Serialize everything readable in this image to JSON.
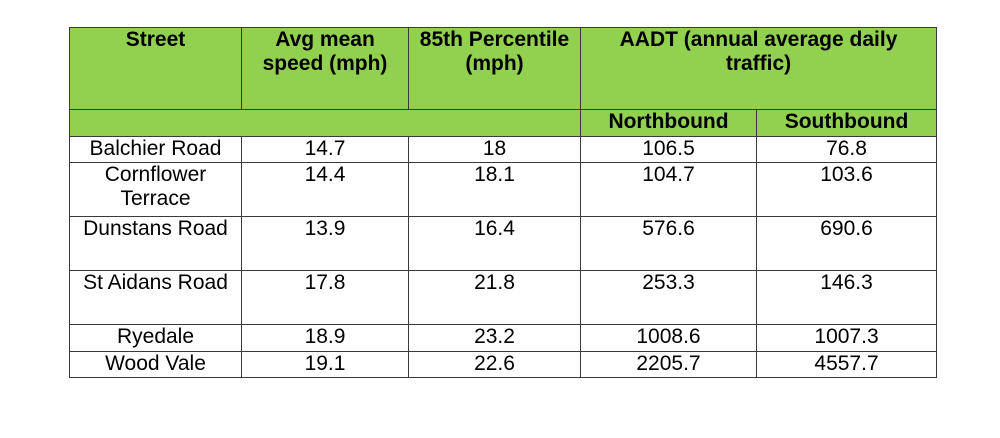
{
  "table": {
    "headers": {
      "street": "Street",
      "avg_speed": "Avg mean speed (mph)",
      "percentile": "85th Percentile (mph)",
      "aadt": "AADT (annual average daily traffic)",
      "northbound": "Northbound",
      "southbound": "Southbound"
    },
    "rows": [
      {
        "street": "Balchier Road",
        "avg": "14.7",
        "p85": "18",
        "north": "106.5",
        "south": "76.8"
      },
      {
        "street": "Cornflower Terrace",
        "avg": "14.4",
        "p85": "18.1",
        "north": "104.7",
        "south": "103.6"
      },
      {
        "street": "Dunstans Road",
        "avg": "13.9",
        "p85": "16.4",
        "north": "576.6",
        "south": "690.6"
      },
      {
        "street": "St Aidans Road",
        "avg": "17.8",
        "p85": "21.8",
        "north": "253.3",
        "south": "146.3"
      },
      {
        "street": "Ryedale",
        "avg": "18.9",
        "p85": "23.2",
        "north": "1008.6",
        "south": "1007.3"
      },
      {
        "street": "Wood Vale",
        "avg": "19.1",
        "p85": "22.6",
        "north": "2205.7",
        "south": "4557.7"
      }
    ],
    "colors": {
      "header_bg": "#92d050",
      "border": "#3a3a3a"
    }
  }
}
